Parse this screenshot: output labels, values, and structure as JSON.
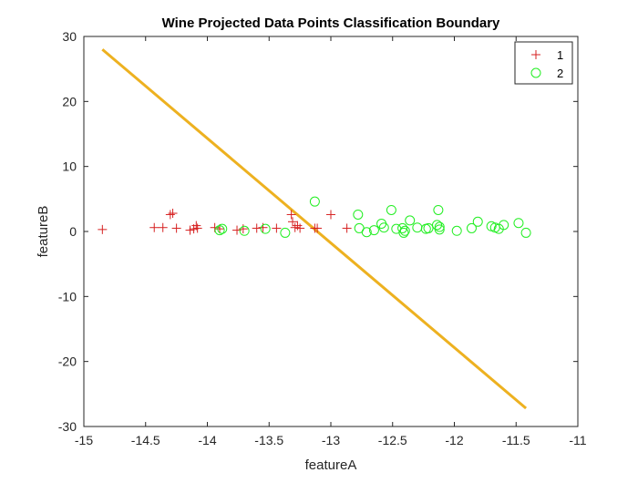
{
  "chart_data": {
    "type": "scatter",
    "title": "Wine Projected Data Points Classification Boundary",
    "xlabel": "featureA",
    "ylabel": "featureB",
    "xlim": [
      -15,
      -11
    ],
    "ylim": [
      -30,
      30
    ],
    "xticks": [
      -15,
      -14.5,
      -14,
      -13.5,
      -13,
      -12.5,
      -12,
      -11.5,
      -11
    ],
    "yticks": [
      -30,
      -20,
      -10,
      0,
      10,
      20,
      30
    ],
    "grid": false,
    "legend_position": "top-right",
    "series": [
      {
        "name": "1",
        "marker": "plus",
        "color": "#d62020",
        "points": [
          [
            -14.85,
            0.3
          ],
          [
            -14.43,
            0.6
          ],
          [
            -14.36,
            0.6
          ],
          [
            -14.3,
            2.6
          ],
          [
            -14.28,
            2.8
          ],
          [
            -14.25,
            0.5
          ],
          [
            -14.14,
            0.2
          ],
          [
            -14.11,
            0.4
          ],
          [
            -14.09,
            0.9
          ],
          [
            -14.08,
            0.5
          ],
          [
            -13.94,
            0.6
          ],
          [
            -13.9,
            0.4
          ],
          [
            -13.76,
            0.2
          ],
          [
            -13.71,
            0.4
          ],
          [
            -13.6,
            0.5
          ],
          [
            -13.55,
            0.6
          ],
          [
            -13.44,
            0.5
          ],
          [
            -13.32,
            2.6
          ],
          [
            -13.31,
            1.5
          ],
          [
            -13.29,
            0.6
          ],
          [
            -13.27,
            0.9
          ],
          [
            -13.25,
            0.5
          ],
          [
            -13.13,
            0.5
          ],
          [
            -13.11,
            0.5
          ],
          [
            -13.0,
            2.6
          ],
          [
            -12.87,
            0.5
          ]
        ]
      },
      {
        "name": "2",
        "marker": "circle",
        "color": "#22ee22",
        "points": [
          [
            -13.9,
            0.2
          ],
          [
            -13.88,
            0.4
          ],
          [
            -13.7,
            0.1
          ],
          [
            -13.53,
            0.4
          ],
          [
            -13.37,
            -0.2
          ],
          [
            -13.13,
            4.6
          ],
          [
            -12.78,
            2.6
          ],
          [
            -12.77,
            0.5
          ],
          [
            -12.71,
            -0.1
          ],
          [
            -12.65,
            0.2
          ],
          [
            -12.59,
            1.2
          ],
          [
            -12.57,
            0.6
          ],
          [
            -12.51,
            3.3
          ],
          [
            -12.47,
            0.4
          ],
          [
            -12.42,
            0.5
          ],
          [
            -12.41,
            -0.2
          ],
          [
            -12.4,
            0.1
          ],
          [
            -12.36,
            1.7
          ],
          [
            -12.3,
            0.6
          ],
          [
            -12.23,
            0.4
          ],
          [
            -12.21,
            0.5
          ],
          [
            -12.14,
            1.0
          ],
          [
            -12.13,
            3.3
          ],
          [
            -12.12,
            0.3
          ],
          [
            -12.12,
            0.7
          ],
          [
            -11.98,
            0.1
          ],
          [
            -11.86,
            0.5
          ],
          [
            -11.81,
            1.5
          ],
          [
            -11.7,
            0.8
          ],
          [
            -11.67,
            0.6
          ],
          [
            -11.64,
            0.4
          ],
          [
            -11.6,
            1.0
          ],
          [
            -11.48,
            1.3
          ],
          [
            -11.42,
            -0.2
          ]
        ]
      }
    ],
    "boundary": {
      "color": "#edb120",
      "points": [
        [
          -14.85,
          28.0
        ],
        [
          -11.42,
          -27.2
        ]
      ]
    }
  }
}
